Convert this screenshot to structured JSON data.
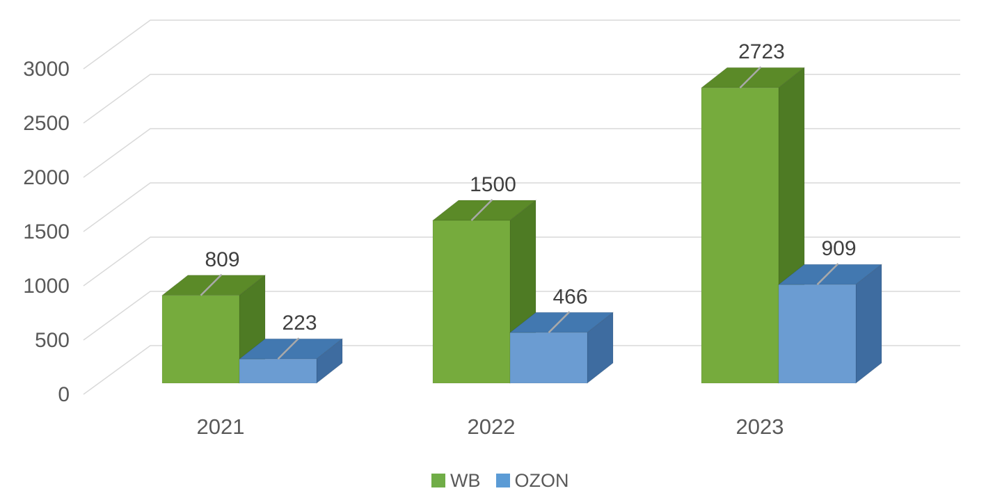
{
  "chart_data": {
    "type": "bar",
    "style": "3d-clustered-column",
    "title": "",
    "categories": [
      "2021",
      "2022",
      "2023"
    ],
    "series": [
      {
        "name": "WB",
        "values": [
          809,
          1500,
          2723
        ],
        "legend_color": "#70AD47",
        "face_front": "#76AB3D",
        "face_top": "#5B8A28",
        "face_side": "#4E7B24"
      },
      {
        "name": "OZON",
        "values": [
          223,
          466,
          909
        ],
        "legend_color": "#5B9BD5",
        "face_front": "#6B9CD2",
        "face_top": "#4278B0",
        "face_side": "#3E6CA0"
      }
    ],
    "data_labels": [
      "809",
      "1500",
      "2723",
      "223",
      "466",
      "909"
    ],
    "y_axis": {
      "ticks": [
        0,
        500,
        1000,
        1500,
        2000,
        2500,
        3000
      ],
      "min": 0,
      "max": 3000,
      "tick_step": 500
    },
    "legend": {
      "position": "bottom",
      "items": [
        "WB",
        "OZON"
      ]
    },
    "grid": true,
    "colors": {
      "gridline": "#D9D9D9",
      "leader_line": "#A9A9A9",
      "axis_text": "#595959",
      "data_label_text": "#404040",
      "background": "#FFFFFF"
    }
  }
}
